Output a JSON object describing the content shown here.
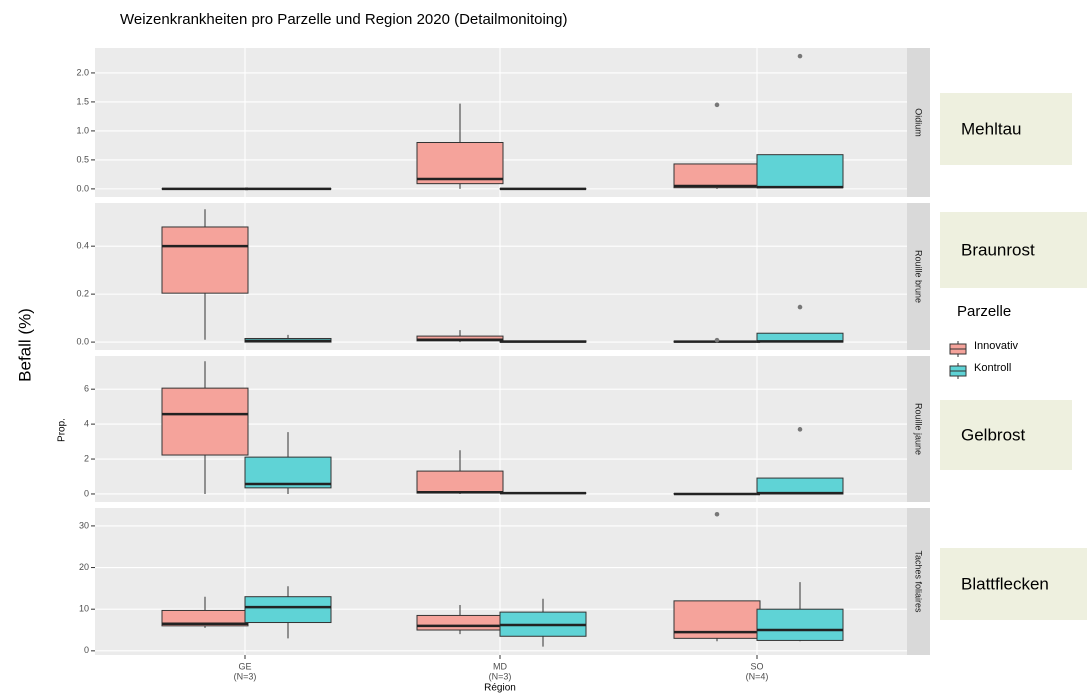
{
  "title": "Weizenkrankheiten pro Parzelle und Region 2020 (Detailmonitoing)",
  "y_label": "Befall (%)",
  "legend_title": "Parzelle",
  "overlay_labels": [
    "Mehltau",
    "Braunrost",
    "Gelbrost",
    "Blattflecken"
  ],
  "chart_data": [
    {
      "type": "box",
      "facet_label": "Oidium",
      "ylim": [
        -0.14,
        2.43
      ],
      "yticks": [
        {
          "value": 0,
          "label": "0.0"
        },
        {
          "value": 0.5,
          "label": "0.5"
        },
        {
          "value": 1,
          "label": "1.0"
        },
        {
          "value": 1.5,
          "label": "1.5"
        },
        {
          "value": 2,
          "label": "2.0"
        }
      ],
      "series": [
        {
          "name": "Innovativ",
          "color": "#f5a39b",
          "values": [
            {
              "min": 0,
              "q1": 0,
              "median": 0,
              "q3": 0,
              "max": 0,
              "outliers": []
            },
            {
              "min": 0,
              "q1": 0.09,
              "median": 0.17,
              "q3": 0.8,
              "max": 1.47,
              "outliers": []
            },
            {
              "min": 0,
              "q1": 0.02,
              "median": 0.05,
              "q3": 0.43,
              "max": 0.43,
              "outliers": [
                1.45
              ]
            }
          ]
        },
        {
          "name": "Kontroll",
          "color": "#5fd3d6",
          "values": [
            {
              "min": 0,
              "q1": 0,
              "median": 0,
              "q3": 0,
              "max": 0,
              "outliers": []
            },
            {
              "min": 0,
              "q1": 0,
              "median": 0,
              "q3": 0,
              "max": 0,
              "outliers": []
            },
            {
              "min": 0.02,
              "q1": 0.02,
              "median": 0.03,
              "q3": 0.59,
              "max": 0.59,
              "outliers": [
                2.29
              ]
            }
          ]
        }
      ]
    },
    {
      "type": "box",
      "facet_label": "Rouille brune",
      "ylim": [
        -0.033,
        0.58
      ],
      "yticks": [
        {
          "value": 0,
          "label": "0.0"
        },
        {
          "value": 0.2,
          "label": "0.2"
        },
        {
          "value": 0.4,
          "label": "0.4"
        }
      ],
      "series": [
        {
          "name": "Innovativ",
          "color": "#f5a39b",
          "values": [
            {
              "min": 0.01,
              "q1": 0.204,
              "median": 0.4,
              "q3": 0.48,
              "max": 0.554,
              "outliers": []
            },
            {
              "min": 0,
              "q1": 0.005,
              "median": 0.01,
              "q3": 0.025,
              "max": 0.05,
              "outliers": []
            },
            {
              "min": 0,
              "q1": 0,
              "median": 0.002,
              "q3": 0.004,
              "max": 0.004,
              "outliers": [
                0.008
              ]
            }
          ]
        },
        {
          "name": "Kontroll",
          "color": "#5fd3d6",
          "values": [
            {
              "min": 0,
              "q1": 0,
              "median": 0.005,
              "q3": 0.015,
              "max": 0.03,
              "outliers": []
            },
            {
              "min": 0,
              "q1": 0,
              "median": 0.002,
              "q3": 0.005,
              "max": 0.005,
              "outliers": []
            },
            {
              "min": 0,
              "q1": 0,
              "median": 0.003,
              "q3": 0.037,
              "max": 0.037,
              "outliers": [
                0.146
              ]
            }
          ]
        }
      ]
    },
    {
      "type": "box",
      "facet_label": "Rouille jaune",
      "ylim": [
        -0.46,
        7.9
      ],
      "yticks": [
        0,
        2,
        4,
        6
      ],
      "series": [
        {
          "name": "Innovativ",
          "color": "#f5a39b",
          "values": [
            {
              "min": 0,
              "q1": 2.23,
              "median": 4.57,
              "q3": 6.06,
              "max": 7.6,
              "outliers": []
            },
            {
              "min": 0,
              "q1": 0.05,
              "median": 0.1,
              "q3": 1.31,
              "max": 2.5,
              "outliers": []
            },
            {
              "min": 0,
              "q1": 0,
              "median": 0,
              "q3": 0.02,
              "max": 0.02,
              "outliers": []
            }
          ]
        },
        {
          "name": "Kontroll",
          "color": "#5fd3d6",
          "values": [
            {
              "min": 0,
              "q1": 0.35,
              "median": 0.57,
              "q3": 2.11,
              "max": 3.54,
              "outliers": []
            },
            {
              "min": 0.05,
              "q1": 0.05,
              "median": 0.05,
              "q3": 0.05,
              "max": 0.05,
              "outliers": []
            },
            {
              "min": 0,
              "q1": 0,
              "median": 0.05,
              "q3": 0.91,
              "max": 0.91,
              "outliers": [
                3.7
              ]
            }
          ]
        }
      ]
    },
    {
      "type": "box",
      "facet_label": "Taches foliaires",
      "ylim": [
        -1,
        34.3
      ],
      "yticks": [
        0,
        10,
        20,
        30
      ],
      "x_label": "Région",
      "categories": [
        "GE",
        "MD",
        "SO"
      ],
      "category_notes": [
        "(N=3)",
        "(N=3)",
        "(N=4)"
      ],
      "series": [
        {
          "name": "Innovativ",
          "color": "#f5a39b",
          "values": [
            {
              "min": 5.5,
              "q1": 6,
              "median": 6.5,
              "q3": 9.7,
              "max": 13,
              "outliers": []
            },
            {
              "min": 4,
              "q1": 5,
              "median": 6,
              "q3": 8.5,
              "max": 11,
              "outliers": []
            },
            {
              "min": 2.3,
              "q1": 3,
              "median": 4.5,
              "q3": 12,
              "max": 12,
              "outliers": [
                32.8
              ]
            }
          ]
        },
        {
          "name": "Kontroll",
          "color": "#5fd3d6",
          "values": [
            {
              "min": 3,
              "q1": 6.8,
              "median": 10.5,
              "q3": 13,
              "max": 15.5,
              "outliers": []
            },
            {
              "min": 1,
              "q1": 3.5,
              "median": 6.2,
              "q3": 9.3,
              "max": 12.5,
              "outliers": []
            },
            {
              "min": 2.3,
              "q1": 2.5,
              "median": 5,
              "q3": 10,
              "max": 16.5,
              "outliers": []
            }
          ]
        }
      ]
    }
  ]
}
